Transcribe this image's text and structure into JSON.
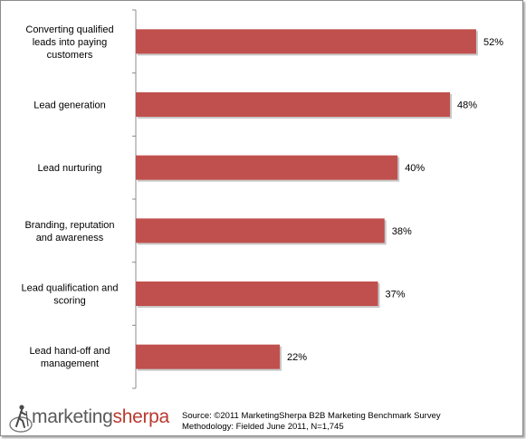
{
  "chart_data": {
    "type": "bar",
    "orientation": "horizontal",
    "categories": [
      "Converting qualified leads into paying customers",
      "Lead generation",
      "Lead nurturing",
      "Branding, reputation and awareness",
      "Lead qualification and scoring",
      "Lead hand-off and management"
    ],
    "category_lines": [
      [
        "Converting qualified",
        "leads into paying",
        "customers"
      ],
      [
        "Lead generation"
      ],
      [
        "Lead nurturing"
      ],
      [
        "Branding, reputation",
        "and awareness"
      ],
      [
        "Lead qualification and",
        "scoring"
      ],
      [
        "Lead hand-off and",
        "management"
      ]
    ],
    "values": [
      52,
      48,
      40,
      38,
      37,
      22
    ],
    "value_labels": [
      "52%",
      "48%",
      "40%",
      "38%",
      "37%",
      "22%"
    ],
    "xlim": [
      0,
      60
    ],
    "bar_color": "#c0504d",
    "grid": false,
    "legend": "none"
  },
  "footer": {
    "logo_part1": "marketing",
    "logo_part2": "sherpa",
    "source_line1": "Source: ©2011 MarketingSherpa B2B Marketing Benchmark Survey",
    "source_line2": "Methodology: Fielded June 2011, N=1,745",
    "logo_colors": {
      "gray": "#5a5a5a",
      "red": "#b73a2e"
    }
  }
}
